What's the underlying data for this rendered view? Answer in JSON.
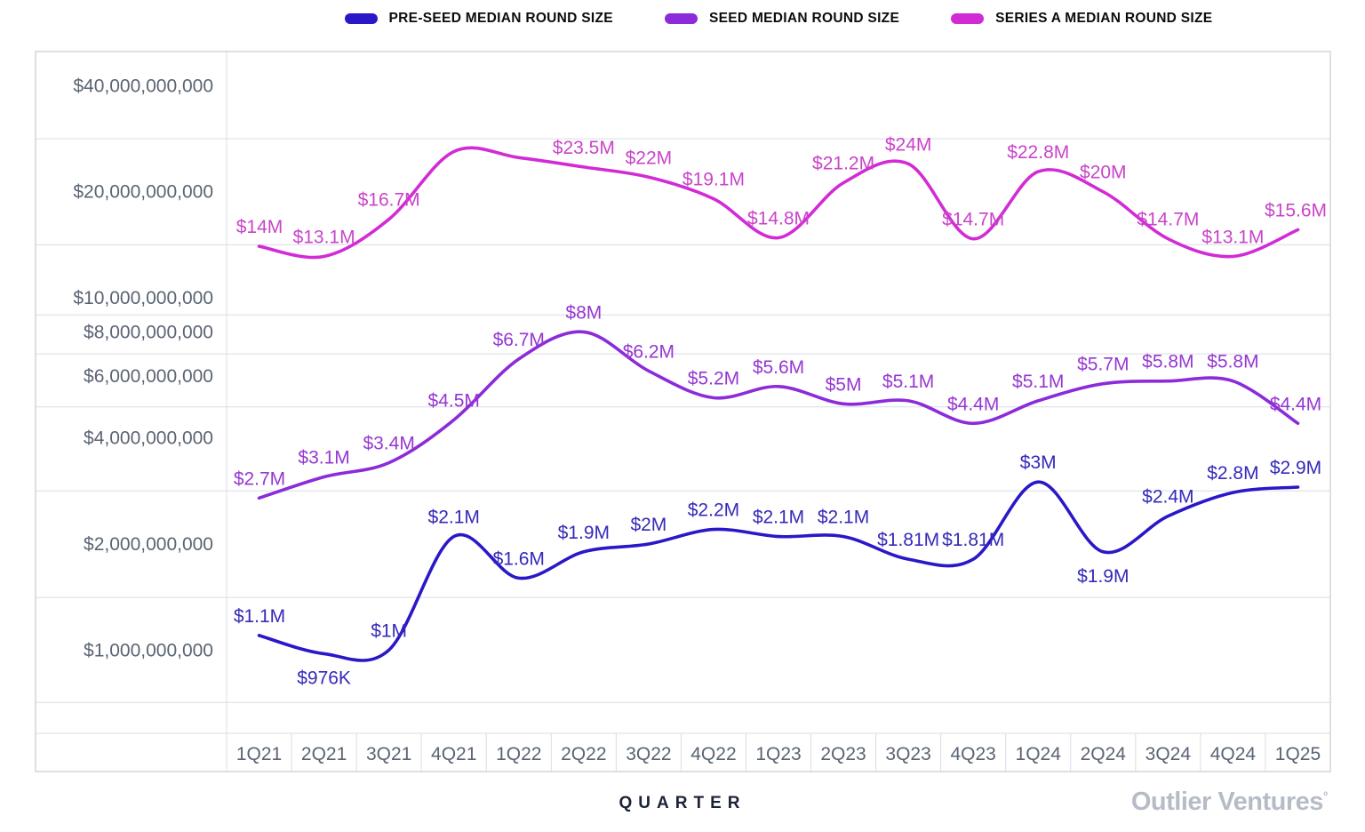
{
  "branding": {
    "logo_text": "Outlier Ventures",
    "logo_mark": "°"
  },
  "chart_data": {
    "type": "line",
    "y_scale": "log",
    "grid": true,
    "legend_position": "top",
    "x_axis_label": "QUARTER",
    "categories": [
      "1Q21",
      "2Q21",
      "3Q21",
      "4Q21",
      "1Q22",
      "2Q22",
      "3Q22",
      "4Q22",
      "1Q23",
      "2Q23",
      "3Q23",
      "4Q23",
      "1Q24",
      "2Q24",
      "3Q24",
      "4Q24",
      "1Q25"
    ],
    "y_tick_labels": [
      "$40,000,000,000",
      "$20,000,000,000",
      "$10,000,000,000",
      "$8,000,000,000",
      "$6,000,000,000",
      "$4,000,000,000",
      "$2,000,000,000",
      "$1,000,000,000"
    ],
    "y_tick_values": [
      40,
      20,
      10,
      8,
      6,
      4,
      2,
      1
    ],
    "grid_boundary_values": [
      28.28,
      14.14,
      8.94,
      6.93,
      4.9,
      2.83,
      1.41,
      0.71
    ],
    "series": [
      {
        "name": "PRE-SEED MEDIAN ROUND SIZE",
        "color": "#2a18c8",
        "label_color": "#342ab8",
        "values_usd_m": [
          1.1,
          0.976,
          1.0,
          2.1,
          1.6,
          1.9,
          2.0,
          2.2,
          2.1,
          2.1,
          1.81,
          1.81,
          3.0,
          1.9,
          2.4,
          2.8,
          2.9
        ],
        "point_labels": [
          "$1.1M",
          "$976K",
          "$1M",
          "$2.1M",
          "$1.6M",
          "$1.9M",
          "$2M",
          "$2.2M",
          "$2.1M",
          "$2.1M",
          "$1.81M",
          "$1.81M",
          "$3M",
          "$1.9M",
          "$2.4M",
          "$2.8M",
          "$2.9M"
        ],
        "label_side": [
          "above",
          "below",
          "above",
          "above",
          "above",
          "above",
          "above",
          "above",
          "above",
          "above",
          "above",
          "above",
          "above",
          "below",
          "above",
          "above",
          "above"
        ]
      },
      {
        "name": "SEED MEDIAN ROUND SIZE",
        "color": "#8c2bd9",
        "label_color": "#9637d2",
        "values_usd_m": [
          2.7,
          3.1,
          3.4,
          4.5,
          6.7,
          8.0,
          6.2,
          5.2,
          5.6,
          5.0,
          5.1,
          4.4,
          5.1,
          5.7,
          5.8,
          5.8,
          4.4
        ],
        "point_labels": [
          "$2.7M",
          "$3.1M",
          "$3.4M",
          "$4.5M",
          "$6.7M",
          "$8M",
          "$6.2M",
          "$5.2M",
          "$5.6M",
          "$5M",
          "$5.1M",
          "$4.4M",
          "$5.1M",
          "$5.7M",
          "$5.8M",
          "$5.8M",
          "$4.4M"
        ],
        "label_side": [
          "above",
          "above",
          "above",
          "above",
          "above",
          "above",
          "above",
          "above",
          "above",
          "above",
          "above",
          "above",
          "above",
          "above",
          "above",
          "above",
          "above"
        ]
      },
      {
        "name": "SERIES A MEDIAN ROUND SIZE",
        "color": "#d22bd6",
        "label_color": "#c944c9",
        "values_usd_m": [
          14,
          13.1,
          16.7,
          26,
          25,
          23.5,
          22,
          19.1,
          14.8,
          21.2,
          24,
          14.7,
          22.8,
          20,
          14.7,
          13.1,
          15.6
        ],
        "point_labels": [
          "$14M",
          "$13.1M",
          "$16.7M",
          "",
          "",
          "$23.5M",
          "$22M",
          "$19.1M",
          "$14.8M",
          "$21.2M",
          "$24M",
          "$14.7M",
          "$22.8M",
          "$20M",
          "$14.7M",
          "$13.1M",
          "$15.6M"
        ],
        "label_side": [
          "above",
          "above",
          "above",
          "above",
          "above",
          "above",
          "above",
          "above",
          "above",
          "above",
          "above",
          "above",
          "above",
          "above",
          "above",
          "above",
          "above"
        ]
      }
    ]
  }
}
